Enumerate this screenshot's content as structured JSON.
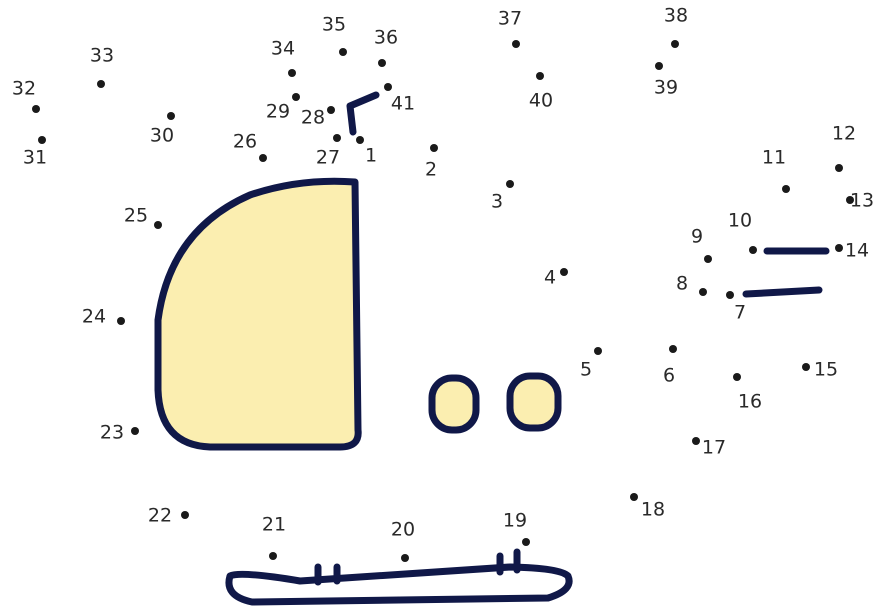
{
  "labels": [
    "1",
    "2",
    "3",
    "4",
    "5",
    "6",
    "7",
    "8",
    "9",
    "10",
    "11",
    "12",
    "13",
    "14",
    "15",
    "16",
    "17",
    "18",
    "19",
    "20",
    "21",
    "22",
    "23",
    "24",
    "25",
    "26",
    "27",
    "28",
    "29",
    "30",
    "31",
    "32",
    "33",
    "34",
    "35",
    "36",
    "37",
    "38",
    "39",
    "40",
    "41"
  ]
}
